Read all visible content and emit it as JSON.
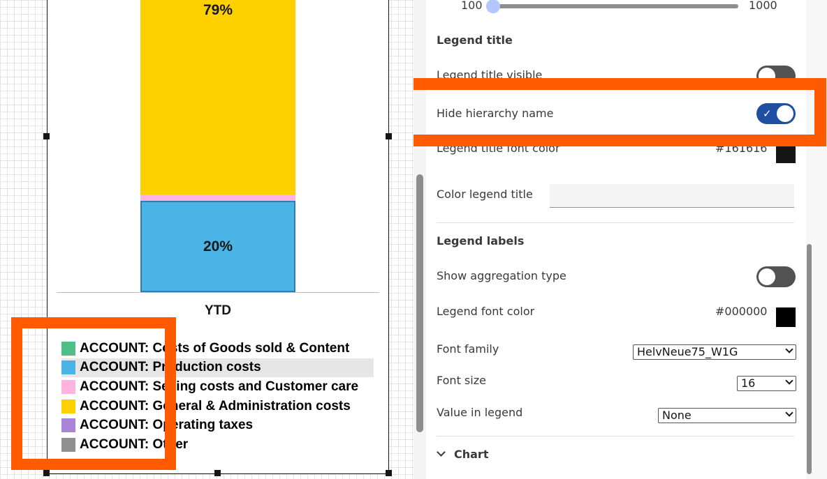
{
  "chart": {
    "x_label": "YTD",
    "segments": [
      {
        "label": "79%",
        "value": 79,
        "color": "#ffd000"
      },
      {
        "label": "",
        "value": 1,
        "color": "#ffb3e0"
      },
      {
        "label": "20%",
        "value": 20,
        "color": "#4bb4e6"
      }
    ]
  },
  "chart_data": {
    "type": "bar",
    "stacked": true,
    "categories": [
      "YTD"
    ],
    "series": [
      {
        "name": "ACCOUNT: Production costs",
        "values": [
          20
        ]
      },
      {
        "name": "ACCOUNT: Selling costs and Customer care",
        "values": [
          1
        ]
      },
      {
        "name": "ACCOUNT: General & Administration costs",
        "values": [
          79
        ]
      }
    ],
    "legend_position": "bottom"
  },
  "legend": {
    "items": [
      {
        "text": "ACCOUNT: Costs of Goods sold & Content",
        "color": "#50be87"
      },
      {
        "text": "ACCOUNT: Production costs",
        "color": "#4bb4e6"
      },
      {
        "text": "ACCOUNT: Selling costs and Customer care",
        "color": "#ffb3e0"
      },
      {
        "text": "ACCOUNT: General & Administration costs",
        "color": "#ffd000"
      },
      {
        "text": "ACCOUNT: Operating taxes",
        "color": "#a885d8"
      },
      {
        "text": "ACCOUNT: Other",
        "color": "#8f8f8f"
      }
    ]
  },
  "panel": {
    "slider": {
      "min_label": "100",
      "max_label": "1000",
      "value": 100
    },
    "legend_title_section": "Legend title",
    "legend_title_visible": {
      "label": "Legend title visible",
      "on": false
    },
    "hide_hierarchy_name": {
      "label": "Hide hierarchy name",
      "on": true
    },
    "legend_title_font_color": {
      "label": "Legend title font color",
      "value": "#161616",
      "swatch": "#161616"
    },
    "color_legend_title": {
      "label": "Color legend title",
      "value": ""
    },
    "legend_labels_section": "Legend labels",
    "show_aggregation_type": {
      "label": "Show aggregation type",
      "on": false
    },
    "legend_font_color": {
      "label": "Legend font color",
      "value": "#000000",
      "swatch": "#000000"
    },
    "font_family": {
      "label": "Font family",
      "value": "HelvNeue75_W1G"
    },
    "font_size": {
      "label": "Font size",
      "value": "16"
    },
    "value_in_legend": {
      "label": "Value in legend",
      "value": "None"
    },
    "chart_section": "Chart"
  },
  "colors": {
    "accent_highlight": "#ff5a00",
    "toggle_on": "#1f4fa3"
  }
}
